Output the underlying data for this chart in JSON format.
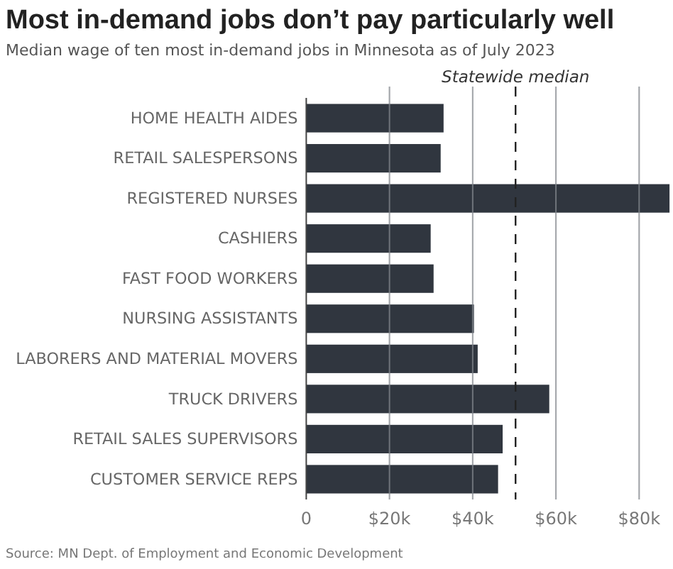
{
  "chart_data": {
    "type": "bar",
    "orientation": "horizontal",
    "title": "Most in-demand jobs don’t pay particularly well",
    "subtitle": "Median wage of ten most in-demand jobs in Minnesota as of July 2023",
    "categories": [
      "HOME HEALTH AIDES",
      "RETAIL SALESPERSONS",
      "REGISTERED NURSES",
      "CASHIERS",
      "FAST FOOD WORKERS",
      "NURSING ASSISTANTS",
      "LABORERS AND MATERIAL MOVERS",
      "TRUCK DRIVERS",
      "RETAIL SALES SUPERVISORS",
      "CUSTOMER SERVICE REPS"
    ],
    "values": [
      33.0,
      32.3,
      87.3,
      29.9,
      30.6,
      40.3,
      41.2,
      58.4,
      47.2,
      46.1
    ],
    "color": "#30363f",
    "xlim": [
      0,
      88
    ],
    "xticks": [
      0,
      {
        "value": 20,
        "label": "$20k"
      },
      {
        "value": 40,
        "label": "$40k"
      },
      {
        "value": 60,
        "label": "$60k"
      },
      {
        "value": 80,
        "label": "$80k"
      }
    ],
    "grid": "x",
    "ref_lines": [
      {
        "axis": "x",
        "value": 50.3,
        "label": "Statewide median",
        "line_style": "dashed",
        "color": "#222222"
      }
    ],
    "annotations": [
      "Source: MN Dept. of Employment and Economic Development"
    ]
  }
}
